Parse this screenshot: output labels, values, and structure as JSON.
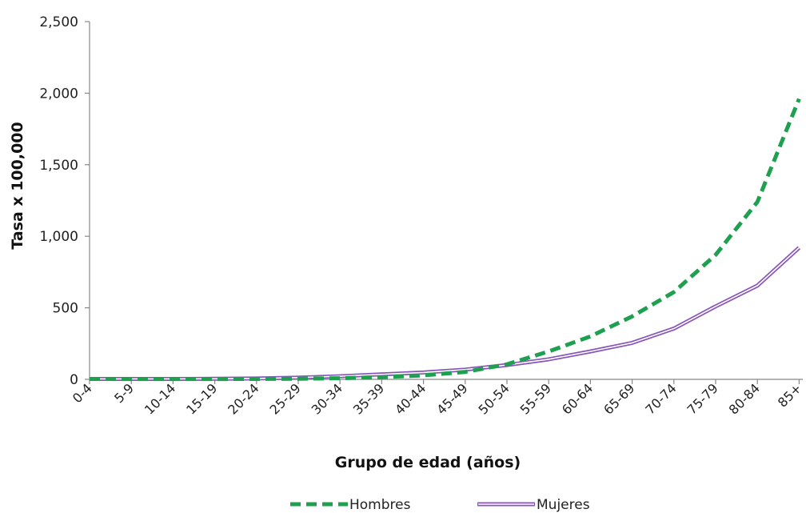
{
  "chart_data": {
    "type": "line",
    "title": "",
    "xlabel": "Grupo de edad (años)",
    "ylabel": "Tasa x 100,000",
    "ylim": [
      0,
      2500
    ],
    "yticks": [
      "0",
      "500",
      "1,000",
      "1,500",
      "2,000",
      "2,500"
    ],
    "ytick_values": [
      0,
      500,
      1000,
      1500,
      2000,
      2500
    ],
    "categories": [
      "0-4",
      "5-9",
      "10-14",
      "15-19",
      "20-24",
      "25-29",
      "30-34",
      "35-39",
      "40-44",
      "45-49",
      "50-54",
      "55-59",
      "60-64",
      "65-69",
      "70-74",
      "75-79",
      "80-84",
      "85+"
    ],
    "grid": false,
    "legend_position": "bottom",
    "series": [
      {
        "name": "Hombres",
        "color": "#1fa050",
        "style": "dashed",
        "values": [
          3,
          2,
          2,
          2,
          3,
          4,
          8,
          15,
          28,
          52,
          105,
          195,
          300,
          440,
          610,
          870,
          1240,
          1960
        ]
      },
      {
        "name": "Mujeres",
        "color": "#8855bb",
        "style": "double",
        "values": [
          3,
          3,
          3,
          4,
          6,
          12,
          22,
          35,
          48,
          68,
          100,
          140,
          195,
          255,
          355,
          510,
          655,
          920
        ]
      }
    ]
  }
}
